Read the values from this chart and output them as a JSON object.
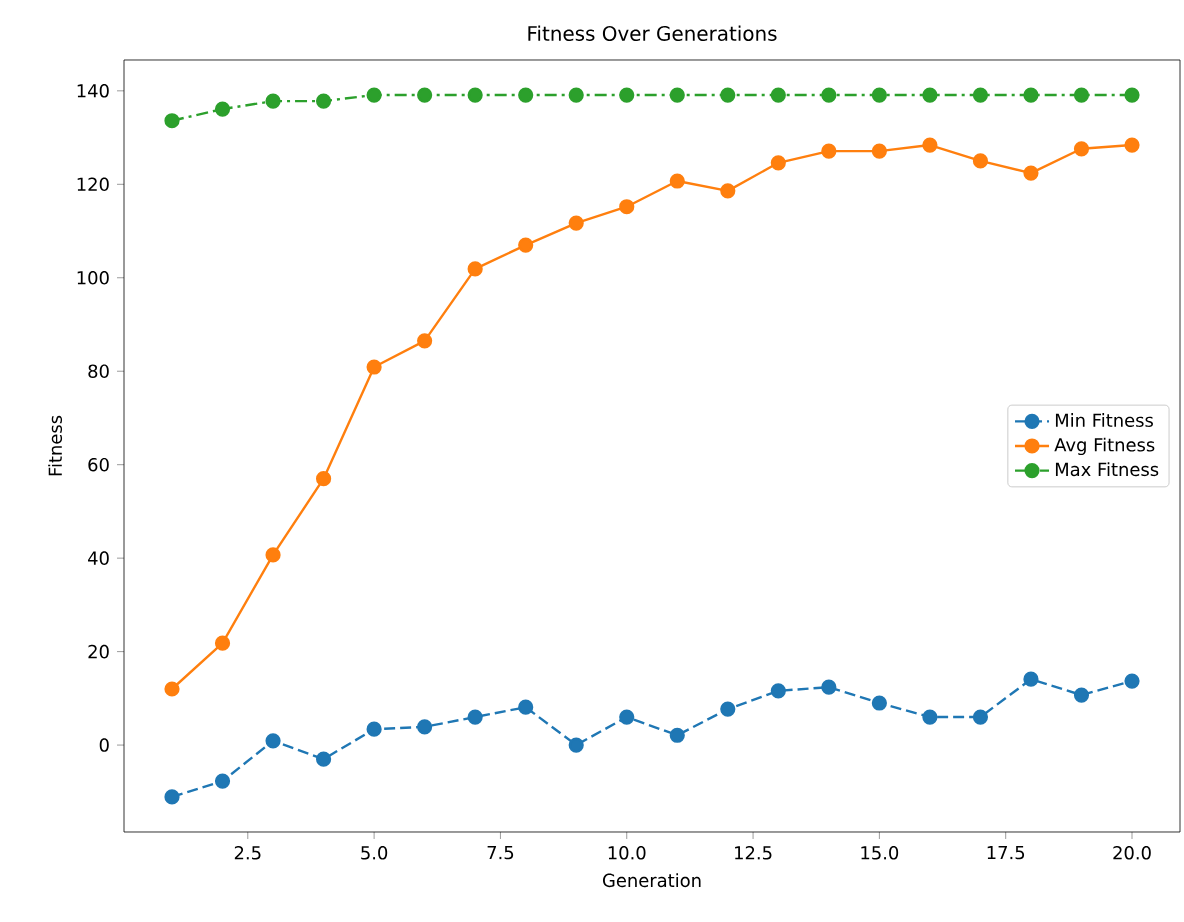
{
  "chart_data": {
    "type": "line",
    "title": "Fitness Over Generations",
    "xlabel": "Generation",
    "ylabel": "Fitness",
    "x": [
      1,
      2,
      3,
      4,
      5,
      6,
      7,
      8,
      9,
      10,
      11,
      12,
      13,
      14,
      15,
      16,
      17,
      18,
      19,
      20
    ],
    "series": [
      {
        "name": "Min Fitness",
        "color": "#1f77b4",
        "line_style": "dashed",
        "values": [
          -11.1,
          -7.7,
          0.9,
          -3,
          3.4,
          3.9,
          6,
          8.1,
          0,
          6,
          2.1,
          7.7,
          11.6,
          12.4,
          9,
          6,
          6,
          14.1,
          10.7,
          13.7
        ]
      },
      {
        "name": "Avg Fitness",
        "color": "#ff7f0e",
        "line_style": "solid",
        "values": [
          12,
          21.8,
          40.7,
          57,
          80.9,
          86.5,
          101.9,
          107,
          111.7,
          115.2,
          120.7,
          118.6,
          124.6,
          127.1,
          127.1,
          128.4,
          125,
          122.4,
          127.6,
          128.4
        ]
      },
      {
        "name": "Max Fitness",
        "color": "#2ca02c",
        "line_style": "dashdot",
        "values": [
          133.6,
          136.1,
          137.8,
          137.8,
          139.1,
          139.1,
          139.1,
          139.1,
          139.1,
          139.1,
          139.1,
          139.1,
          139.1,
          139.1,
          139.1,
          139.1,
          139.1,
          139.1,
          139.1,
          139.1
        ]
      }
    ],
    "xlim": [
      0.05,
      20.95
    ],
    "ylim": [
      -18.6,
      146.6
    ],
    "xticks": [
      2.5,
      {
        "value": 5,
        "label": "5.0"
      },
      7.5,
      {
        "value": 10,
        "label": "10.0"
      },
      12.5,
      {
        "value": 15,
        "label": "15.0"
      },
      17.5,
      {
        "value": 20,
        "label": "20.0"
      }
    ],
    "yticks": [
      0,
      20,
      40,
      60,
      80,
      100,
      120,
      140
    ],
    "marker": "circle",
    "grid": false,
    "legend": "right"
  }
}
